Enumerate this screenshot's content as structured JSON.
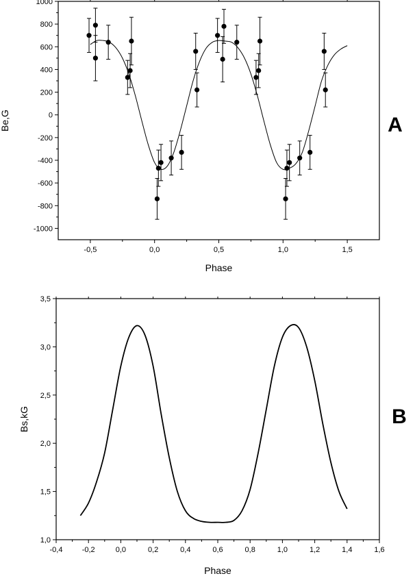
{
  "chart_data": [
    {
      "type": "scatter",
      "panel_label": "A",
      "xlabel": "Phase",
      "ylabel": "Be,G",
      "xlim": [
        -0.75,
        1.75
      ],
      "ylim": [
        -1100,
        1000
      ],
      "x_ticks": [
        -0.5,
        0.0,
        0.5,
        1.0,
        1.5
      ],
      "x_tick_labels": [
        "-0,5",
        "0,0",
        "0,5",
        "1,0",
        "1,5"
      ],
      "y_ticks": [
        -1000,
        -800,
        -600,
        -400,
        -200,
        0,
        200,
        400,
        600,
        800,
        1000
      ],
      "y_tick_labels": [
        "-1000",
        "-800",
        "-600",
        "-400",
        "-200",
        "0",
        "200",
        "400",
        "600",
        "800",
        "1000"
      ],
      "grid": false,
      "series": [
        {
          "kind": "points_with_error_bars",
          "x": [
            -0.51,
            -0.46,
            -0.46,
            -0.36,
            -0.21,
            -0.19,
            -0.18,
            0.02,
            0.03,
            0.05,
            0.13,
            0.21,
            0.32,
            0.33,
            0.49,
            0.53,
            0.54,
            0.64,
            0.79,
            0.81,
            0.82,
            1.02,
            1.03,
            1.05,
            1.13,
            1.21,
            1.32,
            1.33
          ],
          "y": [
            700,
            500,
            790,
            640,
            330,
            390,
            650,
            -740,
            -470,
            -420,
            -380,
            -330,
            560,
            220,
            700,
            490,
            780,
            640,
            330,
            390,
            650,
            -740,
            -470,
            -420,
            -380,
            -330,
            560,
            220
          ],
          "err": [
            150,
            200,
            150,
            150,
            150,
            150,
            210,
            180,
            160,
            160,
            150,
            150,
            160,
            150,
            150,
            200,
            150,
            150,
            150,
            150,
            210,
            180,
            160,
            160,
            150,
            150,
            160,
            150
          ]
        },
        {
          "kind": "fit_curve",
          "x": [
            -0.5,
            -0.45,
            -0.4,
            -0.35,
            -0.3,
            -0.25,
            -0.2,
            -0.15,
            -0.1,
            -0.05,
            0.0,
            0.05,
            0.1,
            0.15,
            0.2,
            0.25,
            0.3,
            0.35,
            0.4,
            0.45,
            0.5,
            0.55,
            0.6,
            0.65,
            0.7,
            0.75,
            0.8,
            0.85,
            0.9,
            0.95,
            1.0,
            1.05,
            1.1,
            1.15,
            1.2,
            1.25,
            1.3,
            1.35,
            1.4,
            1.45,
            1.5
          ],
          "y": [
            620,
            655,
            655,
            640,
            590,
            500,
            360,
            170,
            -50,
            -260,
            -420,
            -480,
            -450,
            -330,
            -140,
            80,
            300,
            470,
            585,
            640,
            655,
            650,
            640,
            590,
            500,
            360,
            170,
            -50,
            -260,
            -420,
            -480,
            -470,
            -430,
            -330,
            -140,
            80,
            300,
            440,
            530,
            580,
            610
          ]
        }
      ]
    },
    {
      "type": "line",
      "panel_label": "B",
      "xlabel": "Phase",
      "ylabel": "Bs,kG",
      "xlim": [
        -0.4,
        1.6
      ],
      "ylim": [
        1.0,
        3.5
      ],
      "x_ticks": [
        -0.4,
        -0.2,
        0.0,
        0.2,
        0.4,
        0.6,
        0.8,
        1.0,
        1.2,
        1.4,
        1.6
      ],
      "x_tick_labels": [
        "-0,4",
        "-0,2",
        "0,0",
        "0,2",
        "0,4",
        "0,6",
        "0,8",
        "1,0",
        "1,2",
        "1,4",
        "1,6"
      ],
      "y_ticks": [
        1.0,
        1.5,
        2.0,
        2.5,
        3.0,
        3.5
      ],
      "y_tick_labels": [
        "1,0",
        "1,5",
        "2,0",
        "2,5",
        "3,0",
        "3,5"
      ],
      "grid": false,
      "series": [
        {
          "kind": "curve",
          "x": [
            -0.25,
            -0.2,
            -0.15,
            -0.1,
            -0.05,
            0.0,
            0.05,
            0.1,
            0.15,
            0.2,
            0.25,
            0.3,
            0.35,
            0.4,
            0.45,
            0.5,
            0.55,
            0.6,
            0.65,
            0.7,
            0.75,
            0.8,
            0.85,
            0.9,
            0.95,
            1.0,
            1.05,
            1.1,
            1.15,
            1.2,
            1.25,
            1.3,
            1.35,
            1.4
          ],
          "y": [
            1.25,
            1.38,
            1.6,
            1.9,
            2.35,
            2.8,
            3.1,
            3.22,
            3.12,
            2.8,
            2.3,
            1.85,
            1.5,
            1.3,
            1.22,
            1.19,
            1.18,
            1.18,
            1.18,
            1.2,
            1.3,
            1.52,
            1.9,
            2.35,
            2.8,
            3.1,
            3.22,
            3.2,
            3.0,
            2.65,
            2.2,
            1.8,
            1.5,
            1.32
          ]
        }
      ]
    }
  ]
}
